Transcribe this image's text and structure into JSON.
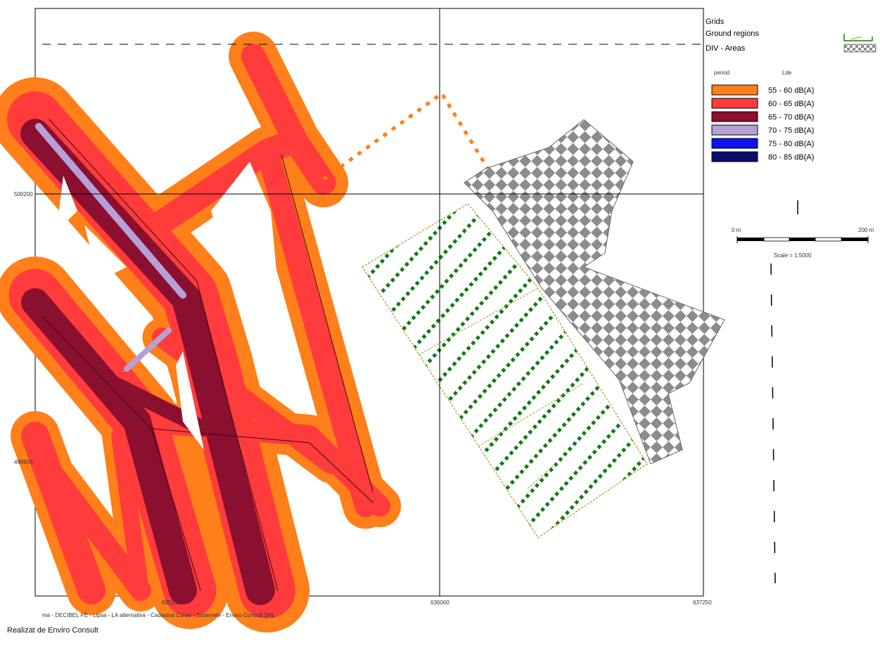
{
  "map": {
    "axis_labels": {
      "y_upper": "500200",
      "y_lower": "499900",
      "x_left": "635250",
      "x_mid": "636000",
      "x_right": "637250"
    },
    "footer_note": "ma - DECIBEL PE - Lipsa - LA alternativa - Cadastral Curve - Sistemele - Enviro Consult SRL",
    "credit": "Realizat de Enviro Consult"
  },
  "legend": {
    "layers": [
      {
        "label": "Grids",
        "symbol": "none"
      },
      {
        "label": "Ground regions",
        "symbol": "ground-region"
      },
      {
        "label": "DIV - Areas",
        "symbol": "checker"
      }
    ],
    "header_left": "period",
    "header_right": "Lde",
    "classes": [
      {
        "label": "55 - 60 dB(A)",
        "color": "#ff7f1a"
      },
      {
        "label": "60 - 65 dB(A)",
        "color": "#ff3b3b"
      },
      {
        "label": "65 - 70 dB(A)",
        "color": "#8b0f2e"
      },
      {
        "label": "70 - 75 dB(A)",
        "color": "#b6a0d8"
      },
      {
        "label": "75 - 80 dB(A)",
        "color": "#0a14f0"
      },
      {
        "label": "80 - 85 dB(A)",
        "color": "#0b0f6b"
      }
    ],
    "scale": {
      "start": "0 m",
      "end": "200 m",
      "caption": "Scale = 1:5000"
    }
  }
}
